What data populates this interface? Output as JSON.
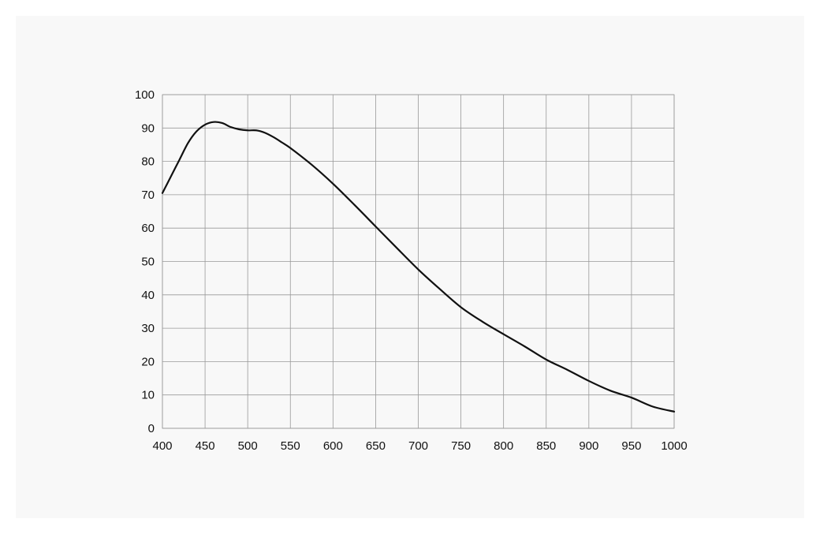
{
  "chart_data": {
    "type": "line",
    "title": "",
    "xlabel": "",
    "ylabel": "",
    "xlim": [
      400,
      1000
    ],
    "ylim": [
      0,
      100
    ],
    "x_ticks": [
      400,
      450,
      500,
      550,
      600,
      650,
      700,
      750,
      800,
      850,
      900,
      950,
      1000
    ],
    "y_ticks": [
      0,
      10,
      20,
      30,
      40,
      50,
      60,
      70,
      80,
      90,
      100
    ],
    "grid": true,
    "legend": "none",
    "line_color": "#111111",
    "series": [
      {
        "x": [
          400,
          410,
          420,
          430,
          440,
          450,
          460,
          470,
          480,
          490,
          500,
          510,
          520,
          530,
          540,
          550,
          575,
          600,
          625,
          650,
          675,
          700,
          725,
          750,
          775,
          800,
          825,
          850,
          875,
          900,
          925,
          950,
          975,
          1000
        ],
        "values": [
          70.5,
          75.5,
          80.5,
          85.5,
          89.0,
          91.0,
          91.8,
          91.5,
          90.3,
          89.6,
          89.3,
          89.3,
          88.6,
          87.3,
          85.7,
          84.0,
          79.0,
          73.3,
          67.0,
          60.5,
          54.0,
          47.6,
          41.8,
          36.3,
          32.0,
          28.2,
          24.5,
          20.6,
          17.5,
          14.2,
          11.3,
          9.2,
          6.5,
          5.0
        ]
      }
    ]
  }
}
